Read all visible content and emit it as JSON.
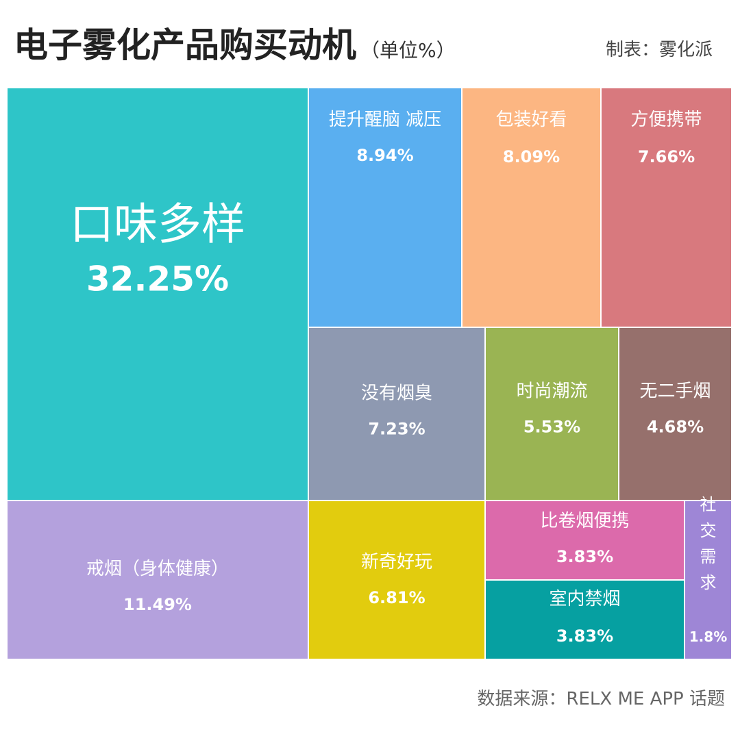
{
  "header": {
    "title": "电子雾化产品购买动机",
    "unit": "（单位%）",
    "credit": "制表：雾化派"
  },
  "footer": {
    "source": "数据来源：RELX ME APP 话题"
  },
  "chart_data": {
    "type": "treemap",
    "title": "电子雾化产品购买动机",
    "unit": "%",
    "items": [
      {
        "label": "口味多样",
        "value": 32.25,
        "value_label": "32.25%",
        "color": "#2ec5c8"
      },
      {
        "label": "提升醒脑 减压",
        "value": 8.94,
        "value_label": "8.94%",
        "color": "#5aaff0"
      },
      {
        "label": "包装好看",
        "value": 8.09,
        "value_label": "8.09%",
        "color": "#fcb682"
      },
      {
        "label": "方便携带",
        "value": 7.66,
        "value_label": "7.66%",
        "color": "#d8797e"
      },
      {
        "label": "没有烟臭",
        "value": 7.23,
        "value_label": "7.23%",
        "color": "#8e99b1"
      },
      {
        "label": "时尚潮流",
        "value": 5.53,
        "value_label": "5.53%",
        "color": "#9ab453"
      },
      {
        "label": "无二手烟",
        "value": 4.68,
        "value_label": "4.68%",
        "color": "#96706c"
      },
      {
        "label": "戒烟（身体健康）",
        "value": 11.49,
        "value_label": "11.49%",
        "color": "#b4a1dd"
      },
      {
        "label": "新奇好玩",
        "value": 6.81,
        "value_label": "6.81%",
        "color": "#e2cc0e"
      },
      {
        "label": "比卷烟便携",
        "value": 3.83,
        "value_label": "3.83%",
        "color": "#dc6aab"
      },
      {
        "label": "室内禁烟",
        "value": 3.83,
        "value_label": "3.83%",
        "color": "#06a0a1"
      },
      {
        "label": "社交需求",
        "value": 1.8,
        "value_label": "1.8%",
        "color": "#9e86d6"
      }
    ]
  }
}
